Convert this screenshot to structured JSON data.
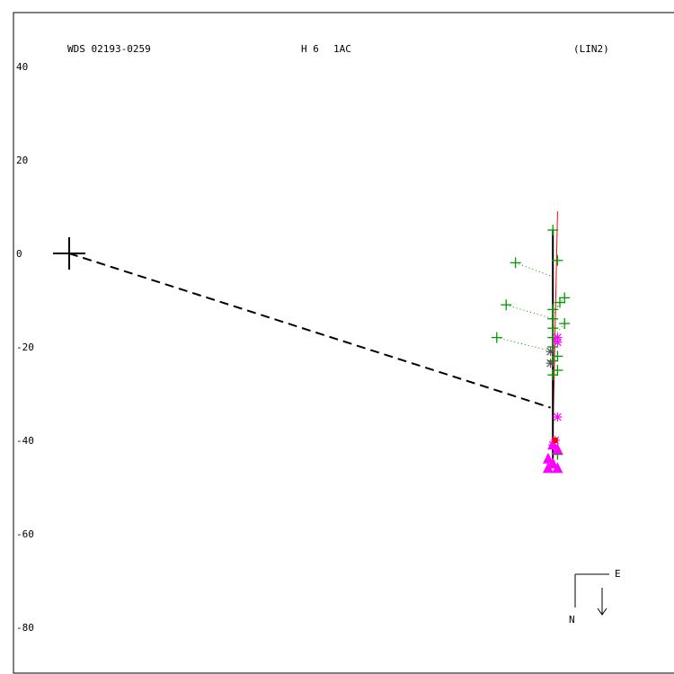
{
  "header": {
    "wds_id": "WDS 02193-0259",
    "discoverer": "H 6",
    "component": "1AC",
    "fit_tag": "(LIN2)"
  },
  "compass": {
    "east_label": "E",
    "north_label": "N"
  },
  "colors": {
    "frame": "#000000",
    "green": "#009900",
    "magenta": "#ff00ff",
    "red": "#ff0000",
    "gray": "#555555"
  },
  "chart_data": {
    "type": "scatter",
    "title": "",
    "ylim": [
      -90,
      45
    ],
    "xlim": [
      -11,
      120
    ],
    "y_ticks": [
      40,
      20,
      0,
      -20,
      -40,
      -60,
      -80
    ],
    "grid": false,
    "primary": {
      "x": 0,
      "y": 0
    },
    "dashed_line": {
      "from": [
        0,
        0
      ],
      "to": [
        103,
        -33
      ]
    },
    "solid_fit": {
      "from": [
        103.5,
        5
      ],
      "to": [
        103.5,
        -46
      ]
    },
    "red_line": {
      "from": [
        104.5,
        9
      ],
      "to": [
        103.5,
        -40
      ]
    },
    "series": [
      {
        "marker": "plus",
        "color": "green",
        "points": [
          [
            103.5,
            5
          ],
          [
            95.5,
            -2
          ],
          [
            104.5,
            -1.5
          ],
          [
            93.5,
            -11
          ],
          [
            106,
            -9.5
          ],
          [
            105,
            -10.5
          ],
          [
            103.5,
            -12
          ],
          [
            103.5,
            -14
          ],
          [
            103.5,
            -16
          ],
          [
            106,
            -15
          ],
          [
            91.5,
            -18
          ],
          [
            103.5,
            -18
          ],
          [
            103.5,
            -20
          ],
          [
            104.5,
            -22
          ],
          [
            103.5,
            -23
          ],
          [
            104.5,
            -25
          ],
          [
            103.5,
            -26
          ],
          [
            104.5,
            -43
          ]
        ]
      },
      {
        "marker": "asterisk",
        "color": "magenta",
        "points": [
          [
            104.5,
            -18
          ],
          [
            104.5,
            -19
          ],
          [
            104.5,
            -35
          ],
          [
            104,
            -40
          ],
          [
            103.5,
            -41
          ]
        ]
      },
      {
        "marker": "asterisk",
        "color": "gray",
        "points": [
          [
            103,
            -21
          ],
          [
            103,
            -23.5
          ]
        ]
      },
      {
        "marker": "triangle",
        "color": "magenta",
        "points": [
          [
            103.5,
            -41
          ],
          [
            104.5,
            -42
          ],
          [
            102.5,
            -44
          ],
          [
            103.5,
            -45
          ],
          [
            102.5,
            -46
          ],
          [
            104.5,
            -46
          ]
        ]
      },
      {
        "marker": "square",
        "color": "red",
        "points": [
          [
            104,
            -40
          ]
        ]
      }
    ]
  }
}
